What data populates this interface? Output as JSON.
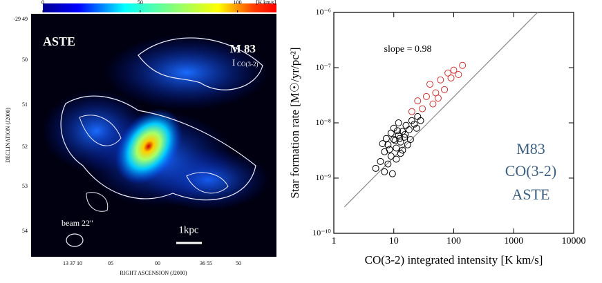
{
  "chart_data": [
    {
      "type": "map",
      "annotations": [
        "ASTE",
        "M 83",
        "I",
        "CO(3-2)",
        "beam 22\"",
        "1kpc"
      ],
      "xlabel": "RIGHT ASCENSION (J2000)",
      "ylabel": "DECLINATION (J2000)",
      "xtick_labels": [
        "13 37 10",
        "05",
        "00",
        "36 55",
        "50"
      ],
      "ytick_labels": [
        "-29 49",
        "50",
        "51",
        "52",
        "53",
        "54"
      ],
      "colorbar": {
        "lim": [
          0,
          120
        ],
        "ticks": [
          0,
          50,
          100
        ],
        "label": "[K km/s]"
      }
    },
    {
      "type": "scatter",
      "annotation": "slope = 0.98",
      "labels": [
        "M83",
        "CO(3-2)",
        "ASTE"
      ],
      "xlabel": "CO(3-2) integrated intensity [K km/s]",
      "ylabel": "Star formation rate [M☉/yr/pc²]",
      "log_x": true,
      "log_y": true,
      "xlim": [
        1,
        10000
      ],
      "xticks": [
        1,
        10,
        100,
        1000,
        10000
      ],
      "ylim": [
        1e-10,
        1e-06
      ],
      "yticks": [
        {
          "value": 1e-10,
          "label": "10⁻¹⁰"
        },
        {
          "value": 1e-09,
          "label": "10⁻⁹"
        },
        {
          "value": 1e-08,
          "label": "10⁻⁸"
        },
        {
          "value": 1e-07,
          "label": "10⁻⁷"
        },
        {
          "value": 1e-06,
          "label": "10⁻⁶"
        }
      ],
      "fit": {
        "color": "#888888",
        "x": [
          1.5,
          2500
        ],
        "y": [
          3e-10,
          1e-06
        ]
      },
      "series": [
        {
          "color": "#000000",
          "x": [
            6,
            7,
            8,
            9,
            10,
            11,
            12,
            13,
            14,
            15,
            9,
            10,
            12,
            16,
            18,
            20,
            22,
            8,
            11,
            13,
            6.5,
            7.5,
            17,
            19,
            25,
            5,
            9.5,
            14,
            10.5,
            12.5,
            15.5,
            11.5,
            8.5,
            7,
            24,
            28
          ],
          "y": [
            2e-09,
            3e-09,
            4e-09,
            2.5e-09,
            5e-09,
            3.5e-09,
            6e-09,
            4.5e-09,
            7e-09,
            5.5e-09,
            6.5e-09,
            8e-09,
            1e-08,
            9e-09,
            7.5e-09,
            1.1e-08,
            9.5e-09,
            1.8e-09,
            2.2e-09,
            2.8e-09,
            4.2e-09,
            5.2e-09,
            4e-09,
            5e-09,
            1.3e-08,
            1.5e-09,
            1.2e-09,
            3.2e-09,
            4.8e-09,
            5.2e-09,
            6.2e-09,
            7.2e-09,
            3.3e-09,
            1.3e-09,
            8e-09,
            1.1e-08
          ]
        },
        {
          "color": "#cc3333",
          "x": [
            20,
            25,
            30,
            35,
            45,
            50,
            40,
            60,
            70,
            80,
            90,
            100,
            120,
            140,
            55
          ],
          "y": [
            1.6e-08,
            2.5e-08,
            1.8e-08,
            3e-08,
            2.2e-08,
            3.5e-08,
            5e-08,
            6e-08,
            4e-08,
            8e-08,
            6.5e-08,
            9e-08,
            7.5e-08,
            1.1e-07,
            2.8e-08
          ]
        }
      ]
    }
  ]
}
